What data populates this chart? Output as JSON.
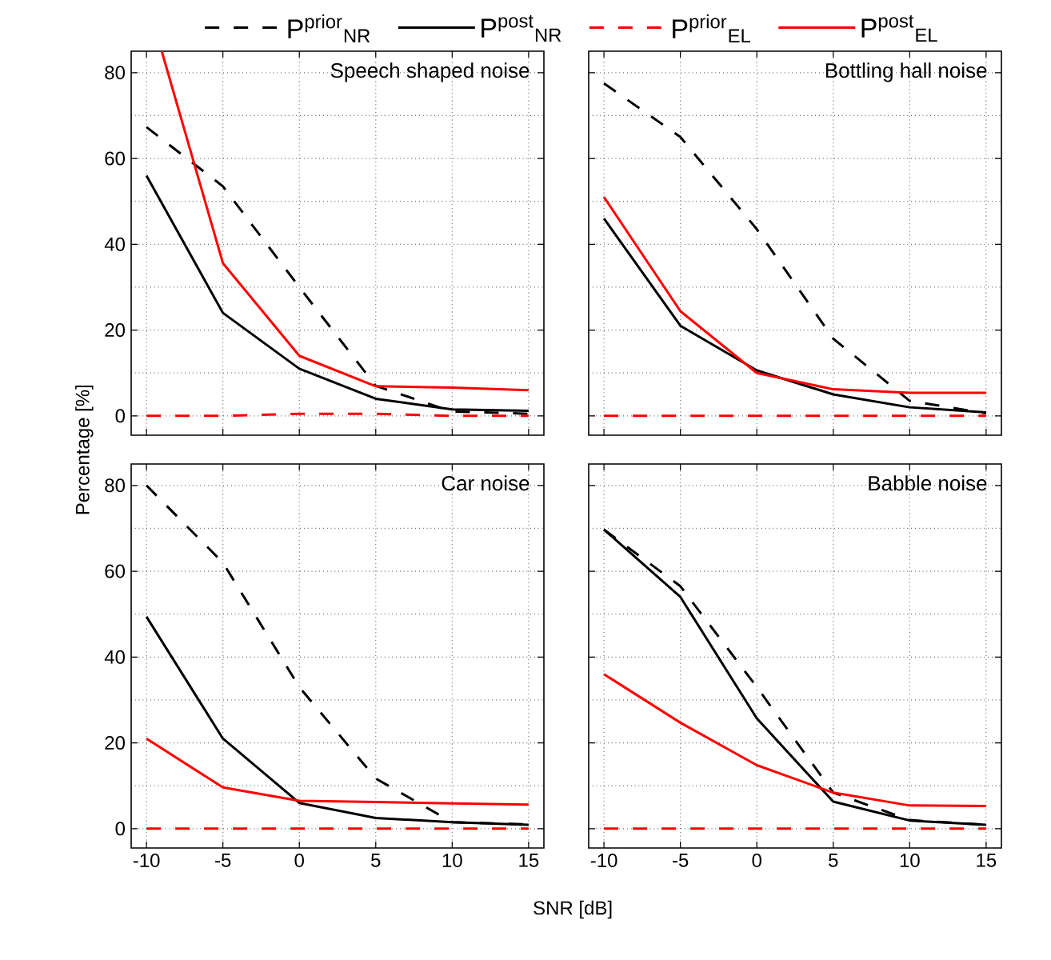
{
  "chart_data": [
    {
      "type": "line",
      "title": "Speech shaped noise",
      "ylabel": "Percentage [%]",
      "x": [
        -10,
        -5,
        0,
        5,
        10,
        15
      ],
      "xlim": [
        -11,
        16
      ],
      "ylim": [
        -4.5,
        85
      ],
      "xticks": [
        -10,
        -5,
        0,
        5,
        10,
        15
      ],
      "yticks": [
        0,
        20,
        40,
        60,
        80
      ],
      "grid": true,
      "legend": "top",
      "tick_labels": "y",
      "series": [
        {
          "name": "P$^{prior}$$_{NR}$",
          "color": "#000000",
          "line_style": "dashed",
          "values": [
            67.3,
            53.5,
            30,
            7,
            1,
            0.5
          ]
        },
        {
          "name": "P$^{post}$$_{NR}$",
          "color": "#000000",
          "line_style": "solid",
          "values": [
            56,
            24,
            11,
            4,
            1.5,
            1.2
          ]
        },
        {
          "name": "P$^{prior}$$_{EL}$",
          "color": "#ff0000",
          "line_style": "dashed",
          "values": [
            0,
            0,
            0.5,
            0.5,
            0,
            0
          ]
        },
        {
          "name": "P$^{post}$$_{EL}$",
          "color": "#ff0000",
          "line_style": "solid",
          "x": [
            -9,
            -5,
            0,
            5,
            10,
            15
          ],
          "values": [
            85,
            35.6,
            14,
            6.9,
            6.6,
            6
          ]
        }
      ]
    },
    {
      "type": "line",
      "title": "Bottling hall noise",
      "x": [
        -10,
        -5,
        0,
        5,
        10,
        15
      ],
      "xlim": [
        -11,
        16
      ],
      "ylim": [
        -4.5,
        85
      ],
      "xticks": [
        -10,
        -5,
        0,
        5,
        10,
        15
      ],
      "yticks": [
        0,
        20,
        40,
        60,
        80
      ],
      "grid": true,
      "tick_labels": false,
      "series": [
        {
          "color": "#000000",
          "line_style": "dashed",
          "values": [
            77.5,
            65,
            43.5,
            18,
            3.5,
            0.6
          ]
        },
        {
          "color": "#000000",
          "line_style": "solid",
          "values": [
            46,
            21,
            10.6,
            5,
            2,
            0.8
          ]
        },
        {
          "color": "#ff0000",
          "line_style": "dashed",
          "values": [
            0,
            0,
            0,
            0,
            0,
            0
          ]
        },
        {
          "color": "#ff0000",
          "line_style": "solid",
          "values": [
            51,
            24.4,
            10,
            6.2,
            5.4,
            5.4
          ]
        }
      ]
    },
    {
      "type": "line",
      "title": "Car noise",
      "xlabel": "SNR [dB]",
      "x": [
        -10,
        -5,
        0,
        5,
        10,
        15
      ],
      "xlim": [
        -11,
        16
      ],
      "ylim": [
        -4.5,
        85
      ],
      "xticks": [
        -10,
        -5,
        0,
        5,
        10,
        15
      ],
      "yticks": [
        0,
        20,
        40,
        60,
        80
      ],
      "grid": true,
      "series": [
        {
          "color": "#000000",
          "line_style": "dashed",
          "values": [
            80,
            62,
            33,
            11.7,
            1.5,
            1
          ]
        },
        {
          "color": "#000000",
          "line_style": "solid",
          "values": [
            49.4,
            21,
            6,
            2.5,
            1.5,
            0.9
          ]
        },
        {
          "color": "#ff0000",
          "line_style": "dashed",
          "values": [
            0,
            0,
            0,
            0,
            0,
            0
          ]
        },
        {
          "color": "#ff0000",
          "line_style": "solid",
          "values": [
            21,
            9.6,
            6.5,
            6.2,
            5.9,
            5.6
          ]
        }
      ]
    },
    {
      "type": "line",
      "title": "Babble noise",
      "x": [
        -10,
        -5,
        0,
        5,
        10,
        15
      ],
      "xlim": [
        -11,
        16
      ],
      "ylim": [
        -4.5,
        85
      ],
      "xticks": [
        -10,
        -5,
        0,
        5,
        10,
        15
      ],
      "yticks": [
        0,
        20,
        40,
        60,
        80
      ],
      "grid": true,
      "tick_labels": "x",
      "series": [
        {
          "color": "#000000",
          "line_style": "dashed",
          "values": [
            69.7,
            56.5,
            33,
            8.4,
            2,
            0.9
          ]
        },
        {
          "color": "#000000",
          "line_style": "solid",
          "values": [
            69.7,
            54,
            25.7,
            6.3,
            1.9,
            0.9
          ]
        },
        {
          "color": "#ff0000",
          "line_style": "dashed",
          "values": [
            0,
            0,
            0,
            0,
            0,
            0
          ]
        },
        {
          "color": "#ff0000",
          "line_style": "solid",
          "values": [
            36,
            24.7,
            14.8,
            8.4,
            5.4,
            5.3
          ]
        }
      ]
    }
  ]
}
